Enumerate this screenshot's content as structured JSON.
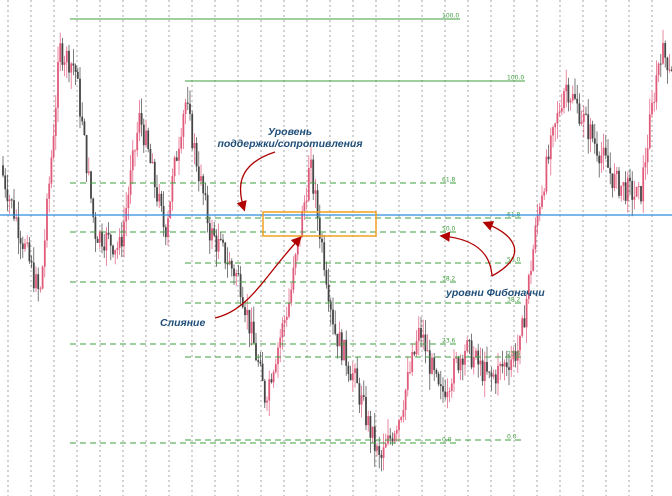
{
  "chart_data": {
    "type": "candlestick",
    "title": "",
    "xlabel": "",
    "ylabel": "",
    "grid": "vertical dashed lines",
    "colors": {
      "bull": "#e05a7a",
      "bear": "#444444",
      "fib_line": "#3f9e3f",
      "horizontal_level": "#2a8de0",
      "zone": "#f0a020",
      "arrows": "#b00000",
      "text": "#1f4e79"
    },
    "price_series_approx": [
      {
        "x": 0,
        "y": 0.6
      },
      {
        "x": 20,
        "y": 0.4
      },
      {
        "x": 40,
        "y": 0.2
      },
      {
        "x": 60,
        "y": 0.95
      },
      {
        "x": 75,
        "y": 0.9
      },
      {
        "x": 95,
        "y": 0.4
      },
      {
        "x": 120,
        "y": 0.35
      },
      {
        "x": 140,
        "y": 0.75
      },
      {
        "x": 165,
        "y": 0.4
      },
      {
        "x": 185,
        "y": 0.8
      },
      {
        "x": 210,
        "y": 0.4
      },
      {
        "x": 240,
        "y": 0.25
      },
      {
        "x": 265,
        "y": -0.1
      },
      {
        "x": 290,
        "y": 0.2
      },
      {
        "x": 310,
        "y": 0.6
      },
      {
        "x": 335,
        "y": 0.1
      },
      {
        "x": 355,
        "y": -0.05
      },
      {
        "x": 380,
        "y": -0.3
      },
      {
        "x": 400,
        "y": -0.15
      },
      {
        "x": 420,
        "y": 0.1
      },
      {
        "x": 440,
        "y": -0.1
      },
      {
        "x": 465,
        "y": 0.05
      },
      {
        "x": 490,
        "y": -0.05
      },
      {
        "x": 520,
        "y": 0.05
      },
      {
        "x": 540,
        "y": 0.5
      },
      {
        "x": 565,
        "y": 0.85
      },
      {
        "x": 590,
        "y": 0.7
      },
      {
        "x": 615,
        "y": 0.55
      },
      {
        "x": 640,
        "y": 0.5
      },
      {
        "x": 660,
        "y": 0.95
      },
      {
        "x": 672,
        "y": 0.9
      }
    ],
    "fib_sets": [
      {
        "name": "set-1",
        "levels": [
          {
            "label": "100.0"
          },
          {
            "label": "61.8"
          },
          {
            "label": "50.0"
          },
          {
            "label": "38.2"
          },
          {
            "label": "23.6"
          },
          {
            "label": "0.0"
          }
        ]
      },
      {
        "name": "set-2",
        "levels": [
          {
            "label": "100.0"
          },
          {
            "label": "61.8"
          },
          {
            "label": "50.0"
          },
          {
            "label": "38.2"
          },
          {
            "label": "23.6"
          },
          {
            "label": "0.0"
          }
        ]
      }
    ],
    "annotations": {
      "support_resistance": {
        "line1": "Уровень",
        "line2": "поддержки/сопротивления"
      },
      "confluence": "Слияние",
      "fib_levels": "уровни Фибоначчи"
    }
  }
}
